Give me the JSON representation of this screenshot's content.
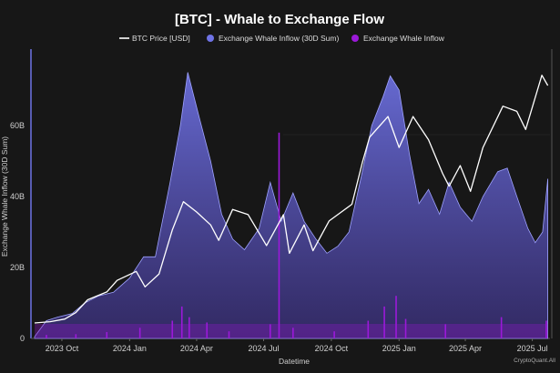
{
  "chart_data": {
    "type": "line",
    "title": "[BTC] - Whale to Exchange Flow",
    "xlabel": "Datetime",
    "ylabel": "Exchange Whale Inflow (30D Sum)",
    "ylim": [
      0,
      80000000000
    ],
    "y_ticks": [
      {
        "value": 0,
        "label": "0"
      },
      {
        "value": 20000000000,
        "label": "20B"
      },
      {
        "value": 40000000000,
        "label": "40B"
      },
      {
        "value": 60000000000,
        "label": "60B"
      }
    ],
    "xlim": [
      "2023-08-20",
      "2025-07-25"
    ],
    "x_ticks": [
      {
        "date": "2023-10-01",
        "label": "2023 Oct"
      },
      {
        "date": "2024-01-01",
        "label": "2024 Jan"
      },
      {
        "date": "2024-04-01",
        "label": "2024 Apr"
      },
      {
        "date": "2024-07-01",
        "label": "2024 Jul"
      },
      {
        "date": "2024-10-01",
        "label": "2024 Oct"
      },
      {
        "date": "2025-01-01",
        "label": "2025 Jan"
      },
      {
        "date": "2025-04-01",
        "label": "2025 Apr"
      },
      {
        "date": "2025-07-01",
        "label": "2025 Jul"
      }
    ],
    "legend_position": "top-center",
    "grid": false,
    "series": [
      {
        "name": "BTC Price [USD]",
        "type": "line",
        "color": "#ffffff",
        "points": [
          [
            "2023-08-25",
            26000
          ],
          [
            "2023-09-15",
            26500
          ],
          [
            "2023-10-05",
            27500
          ],
          [
            "2023-10-20",
            30000
          ],
          [
            "2023-11-05",
            35000
          ],
          [
            "2023-12-01",
            38000
          ],
          [
            "2023-12-15",
            42500
          ],
          [
            "2024-01-10",
            46000
          ],
          [
            "2024-01-22",
            40000
          ],
          [
            "2024-02-10",
            45000
          ],
          [
            "2024-02-28",
            62000
          ],
          [
            "2024-03-14",
            73000
          ],
          [
            "2024-04-01",
            69000
          ],
          [
            "2024-04-20",
            64000
          ],
          [
            "2024-05-01",
            58000
          ],
          [
            "2024-05-20",
            70000
          ],
          [
            "2024-06-10",
            68000
          ],
          [
            "2024-07-05",
            56000
          ],
          [
            "2024-07-28",
            68000
          ],
          [
            "2024-08-05",
            53000
          ],
          [
            "2024-08-25",
            64000
          ],
          [
            "2024-09-06",
            54000
          ],
          [
            "2024-09-28",
            65500
          ],
          [
            "2024-10-29",
            72000
          ],
          [
            "2024-11-12",
            88000
          ],
          [
            "2024-11-22",
            98000
          ],
          [
            "2024-12-17",
            106000
          ],
          [
            "2025-01-01",
            94000
          ],
          [
            "2025-01-20",
            106000
          ],
          [
            "2025-02-10",
            97000
          ],
          [
            "2025-03-01",
            84000
          ],
          [
            "2025-03-10",
            79000
          ],
          [
            "2025-03-25",
            87000
          ],
          [
            "2025-04-08",
            77000
          ],
          [
            "2025-04-25",
            94000
          ],
          [
            "2025-05-22",
            110000
          ],
          [
            "2025-06-10",
            108000
          ],
          [
            "2025-06-22",
            101000
          ],
          [
            "2025-07-14",
            122000
          ],
          [
            "2025-07-22",
            118000
          ]
        ]
      },
      {
        "name": "Exchange Whale Inflow (30D Sum)",
        "type": "area",
        "color": "#6f73e6",
        "points": [
          [
            "2023-08-25",
            500000000
          ],
          [
            "2023-09-10",
            5000000000
          ],
          [
            "2023-09-25",
            6000000000
          ],
          [
            "2023-10-15",
            7000000000
          ],
          [
            "2023-11-01",
            10000000000
          ],
          [
            "2023-11-20",
            12000000000
          ],
          [
            "2023-12-10",
            13000000000
          ],
          [
            "2024-01-01",
            17000000000
          ],
          [
            "2024-01-20",
            23000000000
          ],
          [
            "2024-02-05",
            23000000000
          ],
          [
            "2024-02-25",
            44000000000
          ],
          [
            "2024-03-10",
            60000000000
          ],
          [
            "2024-03-20",
            75000000000
          ],
          [
            "2024-04-05",
            62000000000
          ],
          [
            "2024-04-20",
            50000000000
          ],
          [
            "2024-05-05",
            35000000000
          ],
          [
            "2024-05-20",
            28000000000
          ],
          [
            "2024-06-05",
            25000000000
          ],
          [
            "2024-06-25",
            31000000000
          ],
          [
            "2024-07-10",
            44000000000
          ],
          [
            "2024-07-25",
            33000000000
          ],
          [
            "2024-08-10",
            41000000000
          ],
          [
            "2024-08-25",
            33000000000
          ],
          [
            "2024-09-10",
            28000000000
          ],
          [
            "2024-09-25",
            24000000000
          ],
          [
            "2024-10-10",
            26000000000
          ],
          [
            "2024-10-25",
            30000000000
          ],
          [
            "2024-11-10",
            45000000000
          ],
          [
            "2024-11-25",
            60000000000
          ],
          [
            "2024-12-10",
            68000000000
          ],
          [
            "2024-12-20",
            74000000000
          ],
          [
            "2025-01-01",
            70000000000
          ],
          [
            "2025-01-15",
            52000000000
          ],
          [
            "2025-01-28",
            38000000000
          ],
          [
            "2025-02-10",
            42000000000
          ],
          [
            "2025-02-25",
            35000000000
          ],
          [
            "2025-03-10",
            44000000000
          ],
          [
            "2025-03-25",
            37000000000
          ],
          [
            "2025-04-10",
            33000000000
          ],
          [
            "2025-04-25",
            40000000000
          ],
          [
            "2025-05-15",
            47000000000
          ],
          [
            "2025-05-28",
            48000000000
          ],
          [
            "2025-06-10",
            40000000000
          ],
          [
            "2025-06-25",
            31000000000
          ],
          [
            "2025-07-05",
            27000000000
          ],
          [
            "2025-07-15",
            30000000000
          ],
          [
            "2025-07-22",
            45000000000
          ]
        ]
      },
      {
        "name": "Exchange Whale Inflow",
        "type": "bar",
        "color": "#9b19d9",
        "points": [
          [
            "2023-09-10",
            1000000000
          ],
          [
            "2023-10-20",
            1200000000
          ],
          [
            "2023-12-01",
            1800000000
          ],
          [
            "2024-01-15",
            3000000000
          ],
          [
            "2024-02-28",
            5000000000
          ],
          [
            "2024-03-12",
            9000000000
          ],
          [
            "2024-03-22",
            6000000000
          ],
          [
            "2024-04-15",
            4500000000
          ],
          [
            "2024-05-15",
            2000000000
          ],
          [
            "2024-07-10",
            4000000000
          ],
          [
            "2024-07-22",
            58000000000
          ],
          [
            "2024-08-10",
            3000000000
          ],
          [
            "2024-10-05",
            2000000000
          ],
          [
            "2024-11-20",
            5000000000
          ],
          [
            "2024-12-12",
            9000000000
          ],
          [
            "2024-12-28",
            12000000000
          ],
          [
            "2025-01-10",
            5500000000
          ],
          [
            "2025-03-05",
            4000000000
          ],
          [
            "2025-05-20",
            6000000000
          ],
          [
            "2025-07-20",
            5000000000
          ]
        ]
      }
    ],
    "price_range_usd": [
      20000,
      130000
    ],
    "watermark": "CryptoQuant.All"
  }
}
